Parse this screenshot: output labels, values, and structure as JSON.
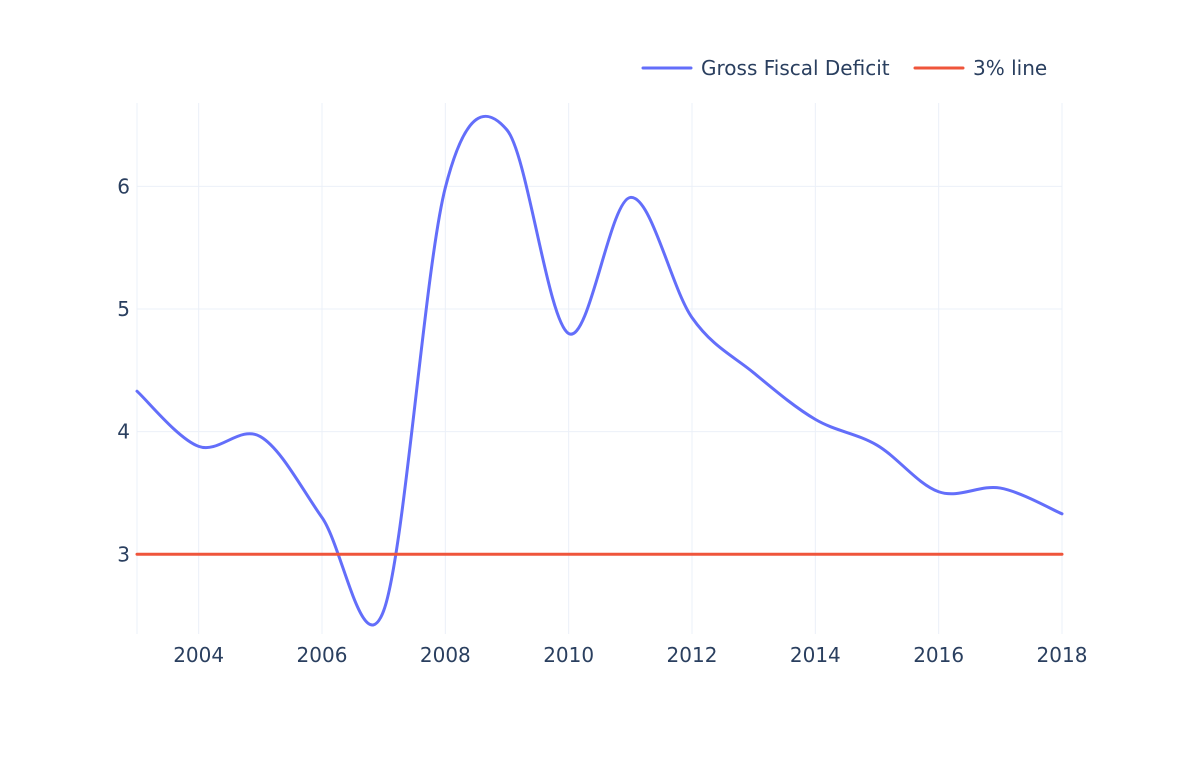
{
  "chart_data": {
    "type": "line",
    "title": "",
    "xlabel": "",
    "ylabel": "",
    "x": [
      2003,
      2004,
      2005,
      2006,
      2007,
      2008,
      2009,
      2010,
      2011,
      2012,
      2013,
      2014,
      2015,
      2016,
      2017,
      2018
    ],
    "series": [
      {
        "name": "Gross Fiscal Deficit",
        "color": "#636efa",
        "values": [
          4.33,
          3.88,
          3.96,
          3.3,
          2.54,
          5.99,
          6.46,
          4.8,
          5.91,
          4.93,
          4.48,
          4.1,
          3.89,
          3.51,
          3.54,
          3.33
        ]
      },
      {
        "name": "3% line",
        "color": "#ef553b",
        "values": [
          3,
          3,
          3,
          3,
          3,
          3,
          3,
          3,
          3,
          3,
          3,
          3,
          3,
          3,
          3,
          3
        ]
      }
    ],
    "xlim": [
      2003,
      2018
    ],
    "ylim": [
      2.35,
      6.68
    ],
    "x_ticks": [
      "2004",
      "2006",
      "2008",
      "2010",
      "2012",
      "2014",
      "2016",
      "2018"
    ],
    "y_ticks": [
      "3",
      "4",
      "5",
      "6"
    ],
    "grid": true,
    "legend_position": "top-right"
  }
}
